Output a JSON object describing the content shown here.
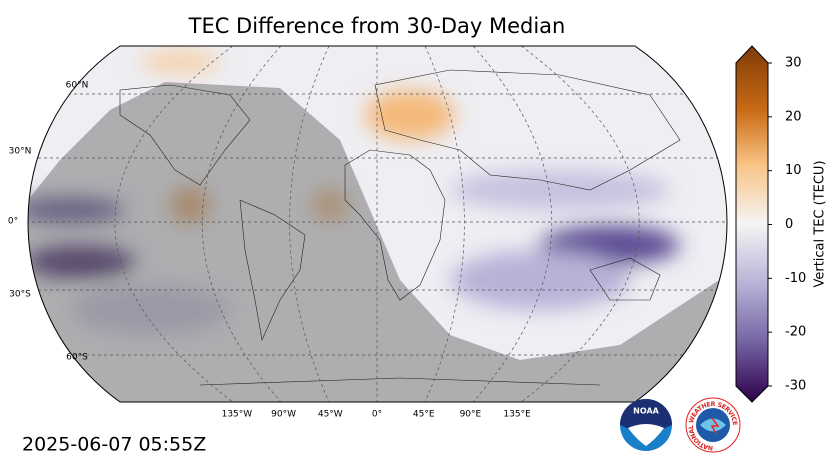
{
  "header": {
    "title": "TEC Difference from 30-Day Median"
  },
  "map": {
    "lat_labels": [
      "60°N",
      "30°N",
      "0°",
      "30°S",
      "60°S"
    ],
    "lon_labels": [
      "135°W",
      "90°W",
      "45°W",
      "0°",
      "45°E",
      "90°E",
      "135°E"
    ]
  },
  "colorbar": {
    "label": "Vertical TEC (TECU)",
    "range": [
      -30,
      30
    ],
    "ticks": [
      30,
      20,
      10,
      0,
      -10,
      -20,
      -30
    ]
  },
  "footer": {
    "timestamp": "2025-06-07 05:55Z"
  },
  "logos": {
    "noaa": "NOAA",
    "nws": "NATIONAL WEATHER SERVICE"
  }
}
